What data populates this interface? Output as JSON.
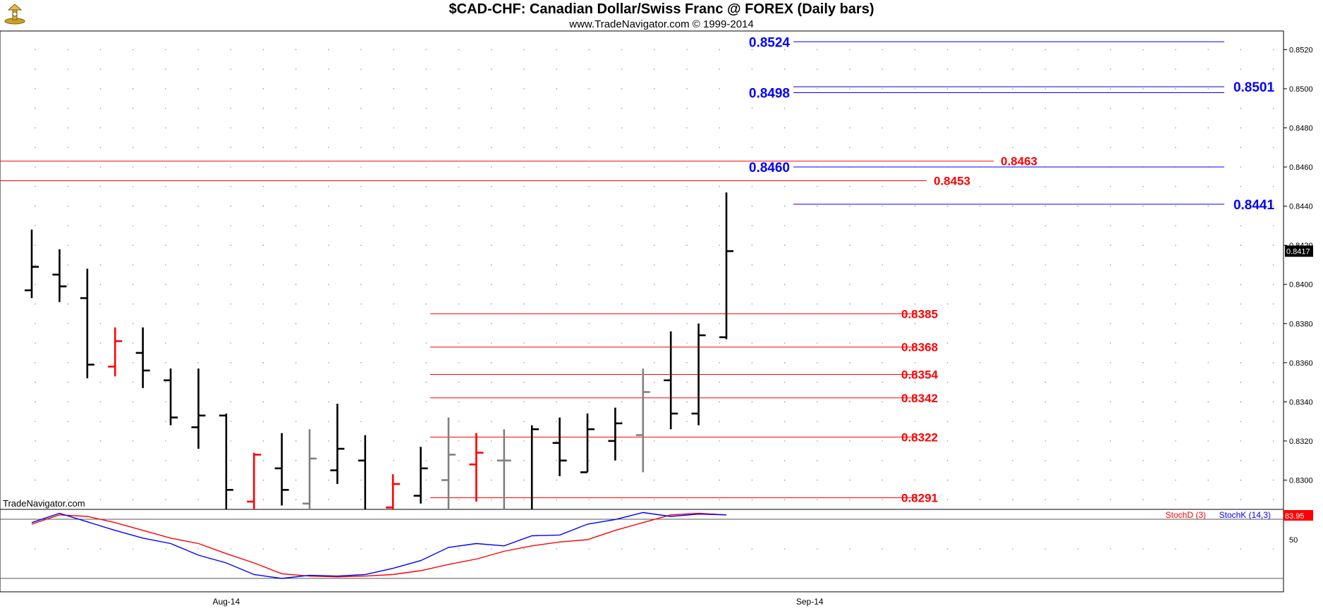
{
  "header": {
    "title": "$CAD-CHF:  Canadian Dollar/Swiss Franc @ FOREX  (Daily bars)",
    "subtitle": "www.TradeNavigator.com © 1999-2014"
  },
  "watermark": "TradeNavigator.com",
  "colors": {
    "up_bar": "#000000",
    "down_bar": "#ff0000",
    "neutral_bar": "#808080",
    "resistance": "#0000ff",
    "support": "#ff0000",
    "stoch_d": "#ff0000",
    "stoch_k": "#0000ff"
  },
  "chart_data": [
    {
      "type": "ohlc",
      "name": "price",
      "title": "$CAD-CHF:  Canadian Dollar/Swiss Franc @ FOREX  (Daily bars)",
      "x_ticks": [
        {
          "label": "Aug-14",
          "bar": 7
        },
        {
          "label": "Sep-14",
          "bar": 28
        }
      ],
      "y_axis": {
        "ticks": [
          "0.8300",
          "0.8320",
          "0.8340",
          "0.8360",
          "0.8380",
          "0.8400",
          "0.8420",
          "0.8440",
          "0.8460",
          "0.8480",
          "0.8500",
          "0.8520"
        ],
        "last_value": "0.8417"
      },
      "bars": [
        {
          "o": 0.8397,
          "h": 0.8428,
          "l": 0.8393,
          "c": 0.8409,
          "col": "up"
        },
        {
          "o": 0.8405,
          "h": 0.8418,
          "l": 0.8391,
          "c": 0.8399,
          "col": "up"
        },
        {
          "o": 0.8393,
          "h": 0.8408,
          "l": 0.8352,
          "c": 0.8359,
          "col": "up"
        },
        {
          "o": 0.8358,
          "h": 0.8378,
          "l": 0.8353,
          "c": 0.8371,
          "col": "down"
        },
        {
          "o": 0.8365,
          "h": 0.8378,
          "l": 0.8347,
          "c": 0.8356,
          "col": "up"
        },
        {
          "o": 0.8351,
          "h": 0.8357,
          "l": 0.8328,
          "c": 0.8332,
          "col": "up"
        },
        {
          "o": 0.8327,
          "h": 0.8357,
          "l": 0.8316,
          "c": 0.8333,
          "col": "up"
        },
        {
          "o": 0.8333,
          "h": 0.8334,
          "l": 0.8282,
          "c": 0.8295,
          "col": "up"
        },
        {
          "o": 0.8289,
          "h": 0.8314,
          "l": 0.828,
          "c": 0.8313,
          "col": "down"
        },
        {
          "o": 0.8306,
          "h": 0.8324,
          "l": 0.8287,
          "c": 0.8295,
          "col": "up"
        },
        {
          "o": 0.8288,
          "h": 0.8326,
          "l": 0.828,
          "c": 0.8311,
          "col": "neutral"
        },
        {
          "o": 0.8305,
          "h": 0.8339,
          "l": 0.8298,
          "c": 0.8316,
          "col": "up"
        },
        {
          "o": 0.831,
          "h": 0.8323,
          "l": 0.8282,
          "c": 0.8285,
          "col": "up"
        },
        {
          "o": 0.8286,
          "h": 0.8303,
          "l": 0.828,
          "c": 0.8298,
          "col": "down"
        },
        {
          "o": 0.8292,
          "h": 0.8317,
          "l": 0.8288,
          "c": 0.8306,
          "col": "up"
        },
        {
          "o": 0.83,
          "h": 0.8332,
          "l": 0.8283,
          "c": 0.8313,
          "col": "neutral"
        },
        {
          "o": 0.8308,
          "h": 0.8324,
          "l": 0.8289,
          "c": 0.8314,
          "col": "down"
        },
        {
          "o": 0.831,
          "h": 0.8326,
          "l": 0.8284,
          "c": 0.831,
          "col": "neutral"
        },
        {
          "o": 0.8285,
          "h": 0.8328,
          "l": 0.8282,
          "c": 0.8326,
          "col": "up"
        },
        {
          "o": 0.8319,
          "h": 0.8332,
          "l": 0.8302,
          "c": 0.831,
          "col": "up"
        },
        {
          "o": 0.8304,
          "h": 0.8334,
          "l": 0.8304,
          "c": 0.8326,
          "col": "up"
        },
        {
          "o": 0.832,
          "h": 0.8337,
          "l": 0.831,
          "c": 0.8329,
          "col": "up"
        },
        {
          "o": 0.8323,
          "h": 0.8357,
          "l": 0.8304,
          "c": 0.8345,
          "col": "neutral"
        },
        {
          "o": 0.8351,
          "h": 0.8376,
          "l": 0.8326,
          "c": 0.8334,
          "col": "up"
        },
        {
          "o": 0.8334,
          "h": 0.838,
          "l": 0.8328,
          "c": 0.8374,
          "col": "up"
        },
        {
          "o": 0.8373,
          "h": 0.8447,
          "l": 0.8372,
          "c": 0.8417,
          "col": "up"
        }
      ],
      "resistance_lines": [
        {
          "value": 0.8524,
          "label": "0.8524",
          "label_side": "left"
        },
        {
          "value": 0.8498,
          "label": "0.8498",
          "label_side": "left"
        },
        {
          "value": 0.8501,
          "label": "0.8501",
          "label_side": "right"
        },
        {
          "value": 0.846,
          "label": "0.8460",
          "label_side": "left"
        },
        {
          "value": 0.8441,
          "label": "0.8441",
          "label_side": "right"
        }
      ],
      "support_lines": [
        {
          "value": 0.8463,
          "label": "0.8463",
          "span": "wide"
        },
        {
          "value": 0.8453,
          "label": "0.8453",
          "span": "wide"
        },
        {
          "value": 0.8385,
          "label": "0.8385",
          "span": "short"
        },
        {
          "value": 0.8368,
          "label": "0.8368",
          "span": "short"
        },
        {
          "value": 0.8354,
          "label": "0.8354",
          "span": "short"
        },
        {
          "value": 0.8342,
          "label": "0.8342",
          "span": "short"
        },
        {
          "value": 0.8322,
          "label": "0.8322",
          "span": "short"
        },
        {
          "value": 0.8291,
          "label": "0.8291",
          "span": "short"
        }
      ]
    },
    {
      "type": "line",
      "name": "stochastic",
      "y_axis": {
        "ticks": [
          "50"
        ],
        "last_value": "83.95"
      },
      "series": [
        {
          "name": "StochD (3)",
          "values": [
            70,
            82,
            80,
            72,
            62,
            52,
            45,
            32,
            20,
            6,
            3,
            2,
            3,
            5,
            10,
            18,
            25,
            35,
            42,
            47,
            50,
            62,
            72,
            82,
            84,
            82
          ]
        },
        {
          "name": "StochK (14,3)",
          "values": [
            72,
            84,
            73,
            62,
            52,
            45,
            30,
            20,
            5,
            0,
            4,
            3,
            5,
            13,
            23,
            40,
            45,
            42,
            55,
            56,
            70,
            76,
            85,
            80,
            83,
            82
          ]
        }
      ]
    }
  ]
}
